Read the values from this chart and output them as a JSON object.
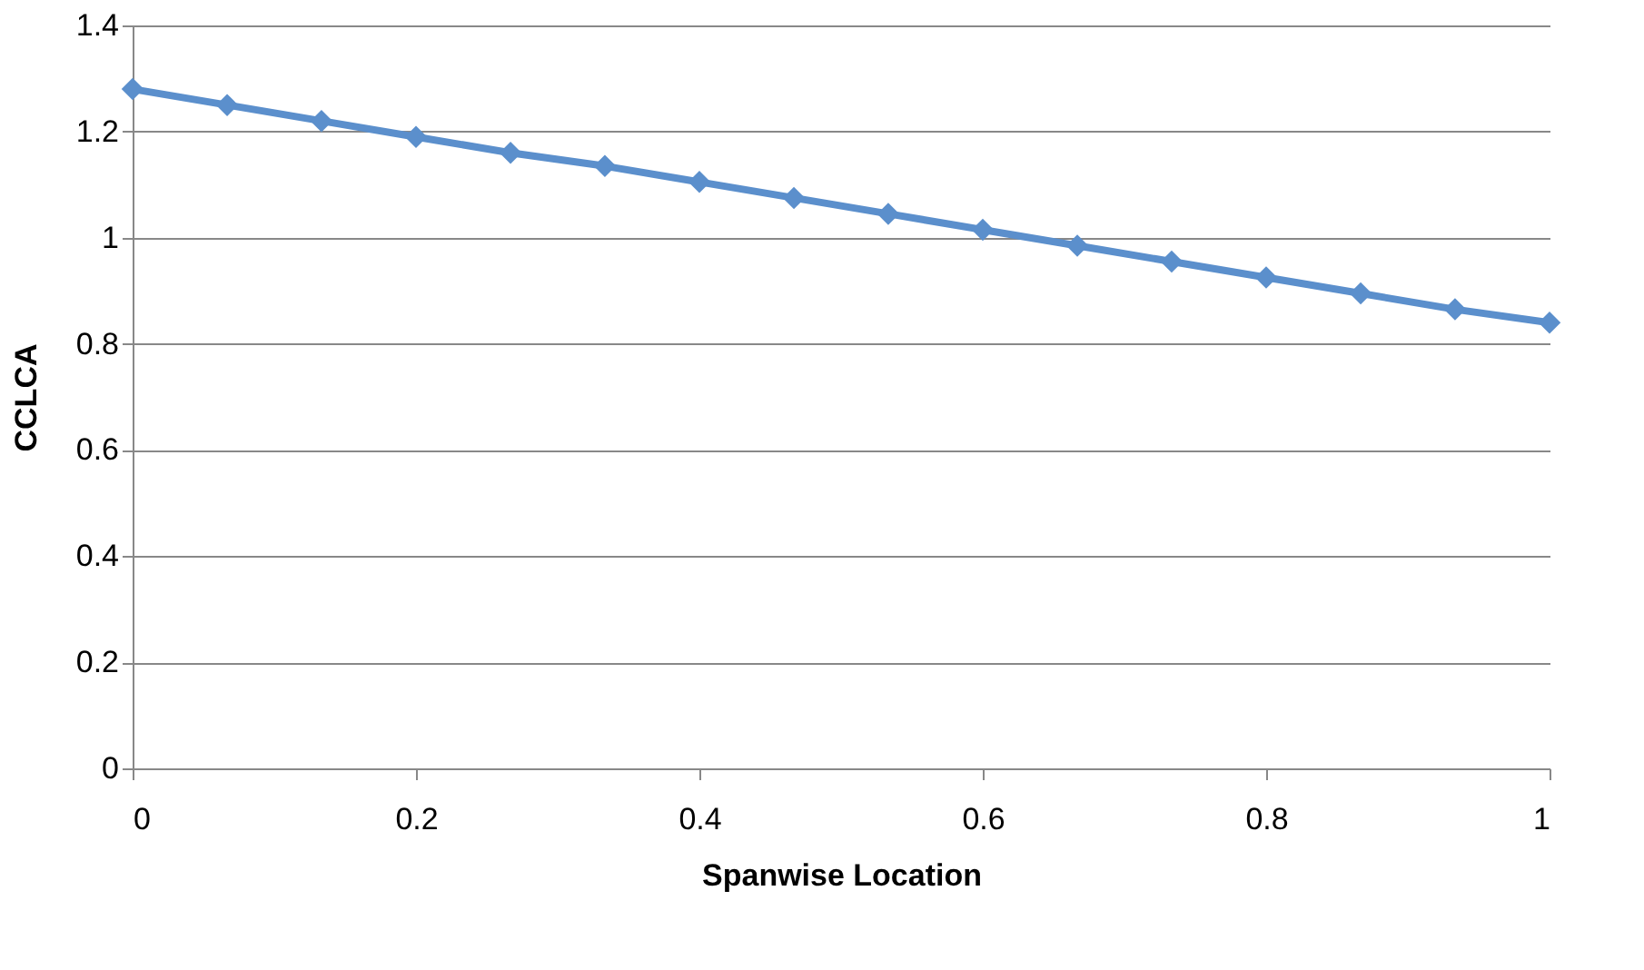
{
  "chart_data": {
    "type": "line",
    "xlabel": "Spanwise Location",
    "ylabel": "CCLCA",
    "x": [
      0,
      0.0667,
      0.1333,
      0.2,
      0.2667,
      0.3333,
      0.4,
      0.4667,
      0.5333,
      0.6,
      0.6667,
      0.7333,
      0.8,
      0.8667,
      0.9333,
      1
    ],
    "series": [
      {
        "color": "#5b8fcc",
        "values": [
          1.28,
          1.25,
          1.22,
          1.19,
          1.16,
          1.135,
          1.105,
          1.075,
          1.045,
          1.015,
          0.985,
          0.955,
          0.925,
          0.895,
          0.865,
          0.84
        ]
      }
    ],
    "xlim": [
      0,
      1
    ],
    "xticks": [
      0,
      0.2,
      0.4,
      0.6,
      0.8,
      1
    ],
    "ylim": [
      0,
      1.4
    ],
    "yticks": [
      0,
      0.2,
      0.4,
      0.6,
      0.8,
      1,
      1.2,
      1.4
    ],
    "grid": "y",
    "marker": "diamond",
    "line_style": "solid"
  }
}
